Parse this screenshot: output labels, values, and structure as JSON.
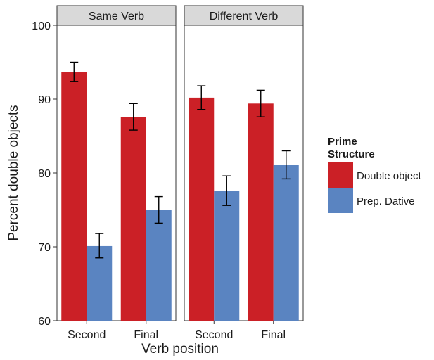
{
  "chart_data": {
    "type": "bar",
    "xlabel": "Verb position",
    "ylabel": "Percent double objects",
    "ylim": [
      60,
      100
    ],
    "yticks": [
      60,
      70,
      80,
      90,
      100
    ],
    "categories": [
      "Second",
      "Final"
    ],
    "legend": {
      "title_lines": [
        "Prime",
        "Structure"
      ],
      "placement": "right",
      "entries": [
        "Double object",
        "Prep. Dative"
      ]
    },
    "colors": {
      "double_object": "#cb2026",
      "prep_dative": "#5a84c1"
    },
    "facets": [
      {
        "label": "Same Verb",
        "series": [
          {
            "name": "Double object",
            "values": [
              93.7,
              87.6
            ],
            "error_low": [
              92.4,
              85.8
            ],
            "error_high": [
              95.0,
              89.4
            ]
          },
          {
            "name": "Prep. Dative",
            "values": [
              70.1,
              75.0
            ],
            "error_low": [
              68.5,
              73.2
            ],
            "error_high": [
              71.8,
              76.8
            ]
          }
        ]
      },
      {
        "label": "Different Verb",
        "series": [
          {
            "name": "Double object",
            "values": [
              90.2,
              89.4
            ],
            "error_low": [
              88.6,
              87.6
            ],
            "error_high": [
              91.8,
              91.2
            ]
          },
          {
            "name": "Prep. Dative",
            "values": [
              77.6,
              81.1
            ],
            "error_low": [
              75.6,
              79.2
            ],
            "error_high": [
              79.6,
              83.0
            ]
          }
        ]
      }
    ]
  }
}
